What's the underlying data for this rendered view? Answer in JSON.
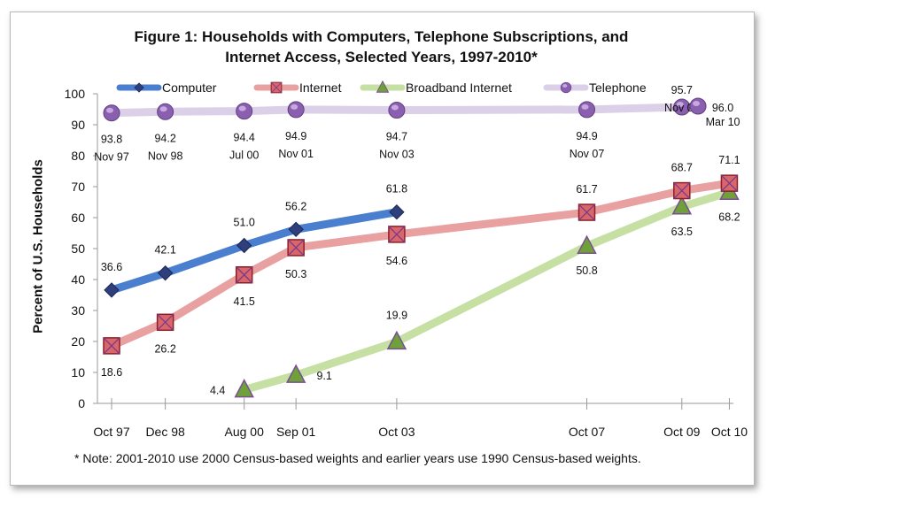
{
  "chart_data": {
    "type": "line",
    "title_line1": "Figure 1: Households with Computers, Telephone Subscriptions, and",
    "title_line2": "Internet Access, Selected Years, 1997-2010*",
    "ylabel": "Percent of U.S. Households",
    "ylim": [
      0,
      100
    ],
    "y_ticks": [
      0,
      10,
      20,
      30,
      40,
      50,
      60,
      70,
      80,
      90,
      100
    ],
    "x_categories": [
      "Oct 97",
      "Dec 98",
      "Aug 00",
      "Sep 01",
      "Oct 03",
      "Oct 07",
      "Oct 09",
      "Oct 10"
    ],
    "x_positions": [
      1997.83,
      1998.96,
      2000.62,
      2001.71,
      2003.83,
      2007.83,
      2009.83,
      2010.83
    ],
    "legend_position": "top",
    "grid": false,
    "series": [
      {
        "name": "Computer",
        "color": "#4a7fcf",
        "marker": "diamond",
        "x": [
          1997.83,
          1998.96,
          2000.62,
          2001.71,
          2003.83
        ],
        "values": [
          36.6,
          42.1,
          51.0,
          56.2,
          61.8
        ],
        "labels": [
          "36.6",
          "42.1",
          "51.0",
          "56.2",
          "61.8"
        ]
      },
      {
        "name": "Internet",
        "color": "#e8a0a0",
        "marker": "square",
        "x": [
          1997.83,
          1998.96,
          2000.62,
          2001.71,
          2003.83,
          2007.83,
          2009.83,
          2010.83
        ],
        "values": [
          18.6,
          26.2,
          41.5,
          50.3,
          54.6,
          61.7,
          68.7,
          71.1
        ],
        "labels": [
          "18.6",
          "26.2",
          "41.5",
          "50.3",
          "54.6",
          "61.7",
          "68.7",
          "71.1"
        ]
      },
      {
        "name": "Broadband Internet",
        "color": "#c6e0a4",
        "marker": "triangle",
        "x": [
          2000.62,
          2001.71,
          2003.83,
          2007.83,
          2009.83,
          2010.83
        ],
        "values": [
          4.4,
          9.1,
          19.9,
          50.8,
          63.5,
          68.2
        ],
        "labels": [
          "4.4",
          "9.1",
          "19.9",
          "50.8",
          "63.5",
          "68.2"
        ]
      },
      {
        "name": "Telephone",
        "color": "#dccfe8",
        "marker": "circle",
        "x": [
          1997.83,
          1998.96,
          2000.62,
          2001.71,
          2003.83,
          2007.83,
          2009.83,
          2010.17
        ],
        "values": [
          93.8,
          94.2,
          94.4,
          94.9,
          94.7,
          94.9,
          95.7,
          96.0
        ],
        "labels": [
          "93.8",
          "94.2",
          "94.4",
          "94.9",
          "94.7",
          "94.9",
          "95.7",
          "96.0"
        ],
        "dates": [
          "Nov 97",
          "Nov 98",
          "Jul 00",
          "Nov 01",
          "Nov 03",
          "Nov 07",
          "Nov 09",
          "Mar 10"
        ]
      }
    ],
    "note": "* Note: 2001-2010 use 2000 Census-based weights and earlier years use 1990 Census-based weights."
  }
}
